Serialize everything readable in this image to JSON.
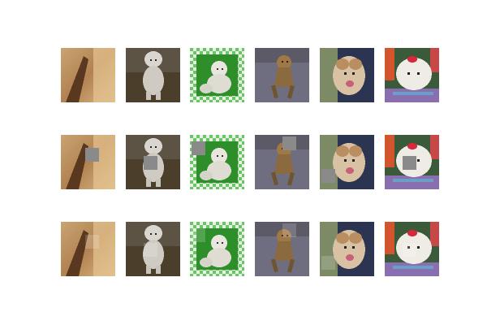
{
  "figure": {
    "rows": [
      {
        "kind": "original",
        "tiles": [
          {
            "subject": "blurry-closeup",
            "mask_quadrant": null
          },
          {
            "subject": "white-poodle-sitting",
            "mask_quadrant": null
          },
          {
            "subject": "white-dog-in-green-checkered-frame",
            "mask_quadrant": null
          },
          {
            "subject": "brown-dog-on-gray-floor",
            "mask_quadrant": null
          },
          {
            "subject": "dog-head-closeup",
            "mask_quadrant": null
          },
          {
            "subject": "white-dog-red-bow-on-blanket",
            "mask_quadrant": null
          }
        ]
      },
      {
        "kind": "masked",
        "tiles": [
          {
            "subject": "blurry-closeup",
            "mask_quadrant": "center"
          },
          {
            "subject": "white-poodle-sitting",
            "mask_quadrant": "center-lower"
          },
          {
            "subject": "white-dog-in-green-checkered-frame",
            "mask_quadrant": "top-left"
          },
          {
            "subject": "brown-dog-on-gray-floor",
            "mask_quadrant": "top-right"
          },
          {
            "subject": "dog-head-closeup",
            "mask_quadrant": "bottom-left"
          },
          {
            "subject": "white-dog-red-bow-on-blanket",
            "mask_quadrant": "center-lower"
          }
        ]
      },
      {
        "kind": "reconstructed",
        "tiles": [
          {
            "subject": "blurry-closeup",
            "mask_quadrant": "center"
          },
          {
            "subject": "white-poodle-sitting",
            "mask_quadrant": "center-lower"
          },
          {
            "subject": "white-dog-in-green-checkered-frame",
            "mask_quadrant": "top-left"
          },
          {
            "subject": "brown-dog-on-gray-floor",
            "mask_quadrant": "top-right"
          },
          {
            "subject": "dog-head-closeup",
            "mask_quadrant": "bottom-left"
          },
          {
            "subject": "white-dog-red-bow-on-blanket",
            "mask_quadrant": "center-lower"
          }
        ]
      }
    ]
  },
  "colors": {
    "background": "#ffffff",
    "mask_gray": "#8a8a8a"
  }
}
